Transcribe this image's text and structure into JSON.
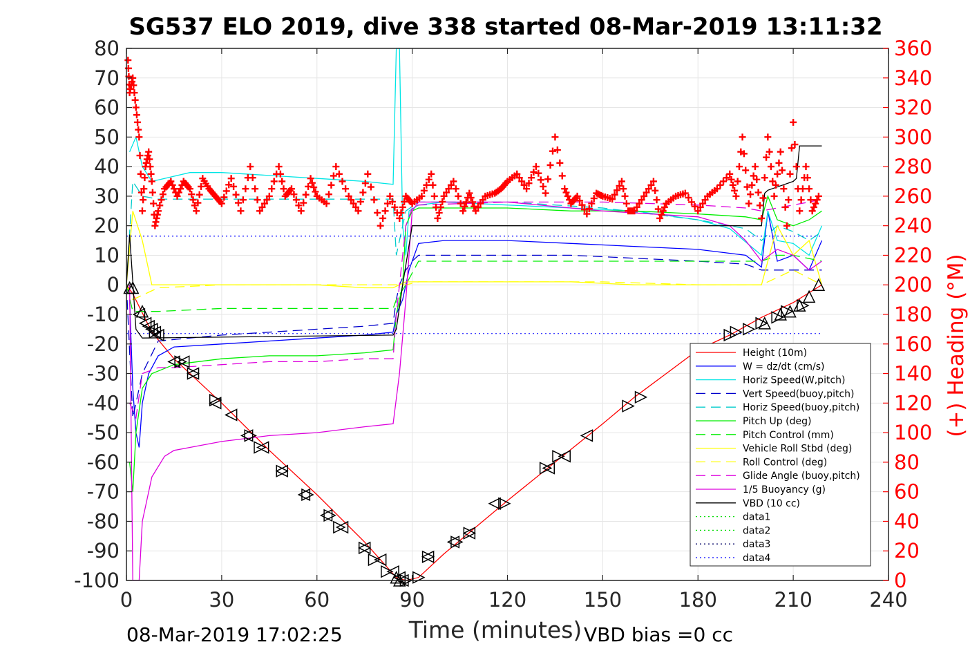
{
  "chart_data": {
    "type": "line",
    "title": "SG537 ELO 2019, dive 338 started 08-Mar-2019 13:11:32",
    "xlabel": "Time (minutes)",
    "ylabel_right": "(+) Heading (°M)",
    "xlim": [
      0,
      240
    ],
    "ylim": [
      -100,
      80
    ],
    "ylim_right": [
      0,
      360
    ],
    "x_ticks": [
      "0",
      "30",
      "60",
      "90",
      "120",
      "150",
      "180",
      "210",
      "240"
    ],
    "y_ticks": [
      "80",
      "70",
      "60",
      "50",
      "40",
      "30",
      "20",
      "10",
      "0",
      "-10",
      "-20",
      "-30",
      "-40",
      "-50",
      "-60",
      "-70",
      "-80",
      "-90",
      "-100"
    ],
    "y_ticks_right": [
      "360",
      "340",
      "320",
      "300",
      "280",
      "260",
      "240",
      "220",
      "200",
      "180",
      "160",
      "140",
      "120",
      "100",
      "80",
      "60",
      "40",
      "20",
      "0"
    ],
    "grid": true,
    "legend_position": "lower-right",
    "footer_left": "08-Mar-2019 17:02:25",
    "footer_right": "VBD bias =0 cc",
    "series": [
      {
        "name": "Height (10m)",
        "color": "#ff0000",
        "style": "solid",
        "x": [
          0,
          2,
          8,
          15,
          30,
          45,
          60,
          75,
          85,
          88,
          92,
          100,
          110,
          120,
          135,
          150,
          160,
          170,
          180,
          190,
          200,
          210,
          219
        ],
        "y": [
          0,
          -3,
          -16,
          -25,
          -40,
          -56,
          -71,
          -87,
          -99,
          -100,
          -99,
          -91,
          -82,
          -73,
          -60,
          -47,
          -38,
          -30,
          -22,
          -17,
          -11,
          -6,
          0
        ]
      },
      {
        "name": "W = dz/dt (cm/s)",
        "color": "#0000ff",
        "style": "solid",
        "x": [
          1,
          2,
          3,
          4,
          5,
          7,
          10,
          15,
          30,
          45,
          60,
          75,
          84,
          85,
          87,
          89,
          92,
          100,
          120,
          140,
          160,
          180,
          195,
          200,
          202,
          205,
          210,
          215,
          219
        ],
        "y": [
          -5,
          -35,
          -50,
          -55,
          -40,
          -30,
          -24,
          -21,
          -20,
          -19,
          -18,
          -17,
          -16,
          -10,
          -5,
          5,
          14,
          15,
          15,
          14,
          13,
          12,
          10,
          6,
          25,
          8,
          10,
          5,
          15
        ]
      },
      {
        "name": "Horiz Speed(W,pitch)",
        "color": "#00e5e5",
        "style": "solid",
        "x": [
          1,
          3,
          5,
          8,
          12,
          20,
          30,
          45,
          60,
          75,
          84,
          85,
          86,
          87,
          88,
          89,
          92,
          100,
          120,
          140,
          160,
          180,
          190,
          200,
          202,
          205,
          210,
          215,
          219
        ],
        "y": [
          45,
          50,
          40,
          35,
          36,
          38,
          38,
          37,
          36,
          35,
          34,
          80,
          80,
          20,
          10,
          25,
          27,
          28,
          27,
          26,
          25,
          22,
          19,
          10,
          25,
          15,
          14,
          10,
          20
        ]
      },
      {
        "name": "Vert Speed(buoy,pitch)",
        "color": "#0000cc",
        "style": "dashed",
        "x": [
          0,
          2,
          5,
          10,
          20,
          30,
          45,
          60,
          75,
          84,
          85,
          86,
          88,
          90,
          92,
          100,
          120,
          140,
          160,
          180,
          195,
          200,
          205,
          210,
          215,
          219
        ],
        "y": [
          0,
          -45,
          -30,
          -19,
          -18,
          -17,
          -16,
          -15,
          -14,
          -13,
          -5,
          0,
          5,
          8,
          10,
          10,
          10,
          10,
          9,
          8,
          7,
          5,
          5,
          5,
          5,
          5
        ]
      },
      {
        "name": "Horiz Speed(buoy,pitch)",
        "color": "#00cccc",
        "style": "dashed",
        "x": [
          0,
          2,
          5,
          10,
          30,
          60,
          84,
          85,
          88,
          92,
          120,
          150,
          180,
          195,
          200,
          205,
          210,
          215,
          219
        ],
        "y": [
          0,
          35,
          30,
          29,
          29,
          29,
          29,
          10,
          25,
          28,
          28,
          26,
          22,
          19,
          15,
          20,
          18,
          15,
          18
        ]
      },
      {
        "name": "Pitch Up (deg)",
        "color": "#00ee00",
        "style": "solid",
        "x": [
          1,
          2,
          3,
          5,
          8,
          15,
          30,
          45,
          60,
          75,
          84,
          85,
          86,
          87,
          88,
          90,
          92,
          100,
          120,
          140,
          160,
          180,
          195,
          200,
          202,
          205,
          210,
          215,
          219
        ],
        "y": [
          -60,
          -70,
          -50,
          -35,
          -30,
          -27,
          -25,
          -24,
          -24,
          -23,
          -22,
          -10,
          -5,
          0,
          20,
          25,
          26,
          26,
          26,
          25,
          25,
          24,
          23,
          22,
          30,
          22,
          20,
          22,
          25
        ]
      },
      {
        "name": "Pitch Control (mm)",
        "color": "#00ee00",
        "style": "dashed",
        "x": [
          0,
          2,
          10,
          30,
          60,
          84,
          85,
          88,
          92,
          120,
          150,
          180,
          195,
          200,
          205,
          210,
          219
        ],
        "y": [
          0,
          -9,
          -9,
          -8,
          -8,
          -8,
          -5,
          0,
          8,
          8,
          8,
          8,
          8,
          8,
          10,
          10,
          8
        ]
      },
      {
        "name": "Vehicle Roll Stbd (deg)",
        "color": "#ffff00",
        "style": "solid",
        "x": [
          0,
          2,
          5,
          8,
          15,
          30,
          45,
          60,
          75,
          84,
          86,
          88,
          90,
          100,
          120,
          140,
          160,
          180,
          195,
          200,
          205,
          210,
          215,
          219
        ],
        "y": [
          0,
          25,
          15,
          0,
          0,
          0,
          0,
          0,
          -1,
          -1,
          0,
          1,
          1,
          1,
          1,
          1,
          0,
          0,
          0,
          0,
          20,
          10,
          15,
          0
        ]
      },
      {
        "name": "Roll Control (deg)",
        "color": "#ffff00",
        "style": "dashed",
        "x": [
          0,
          2,
          10,
          30,
          60,
          84,
          88,
          92,
          120,
          150,
          180,
          200,
          210,
          219
        ],
        "y": [
          0,
          -5,
          -1,
          0,
          0,
          0,
          0,
          1,
          1,
          1,
          0,
          0,
          5,
          0
        ]
      },
      {
        "name": "Glide Angle (buoy,pitch)",
        "color": "#dd00dd",
        "style": "dashed",
        "x": [
          1,
          3,
          5,
          10,
          15,
          30,
          45,
          60,
          75,
          84,
          85,
          86,
          88,
          90,
          92,
          120,
          150,
          180,
          195,
          200,
          205,
          210,
          215,
          219
        ],
        "y": [
          -40,
          -45,
          -30,
          -28,
          -28,
          -27,
          -26,
          -26,
          -25,
          -25,
          -10,
          0,
          20,
          26,
          27,
          28,
          28,
          27,
          26,
          25,
          26,
          27,
          28,
          29
        ]
      },
      {
        "name": "1/5 Buoyancy (g)",
        "color": "#dd00dd",
        "style": "solid",
        "x": [
          1,
          2,
          4,
          5,
          8,
          12,
          15,
          20,
          30,
          45,
          60,
          75,
          84,
          86,
          88,
          90,
          92,
          120,
          150,
          180,
          190,
          195,
          200,
          205,
          210,
          215,
          219
        ],
        "y": [
          0,
          -100,
          -100,
          -80,
          -65,
          -58,
          -56,
          -55,
          -53,
          -51,
          -50,
          -48,
          -47,
          -30,
          -5,
          25,
          28,
          28,
          25,
          23,
          20,
          15,
          8,
          12,
          10,
          5,
          8
        ]
      },
      {
        "name": "VBD (10 cc)",
        "color": "#000000",
        "style": "solid",
        "x": [
          0,
          1,
          3,
          5,
          84,
          85,
          87,
          90,
          200,
          201,
          202,
          210,
          211,
          212,
          219
        ],
        "y": [
          0,
          17,
          -15,
          -18,
          -17,
          -15,
          0,
          20,
          20,
          31,
          32,
          35,
          36,
          47,
          47
        ]
      },
      {
        "name": "data1",
        "color": "#00dd00",
        "style": "dotted",
        "x": [],
        "y": []
      },
      {
        "name": "data2",
        "color": "#00dd00",
        "style": "dotted",
        "x": [],
        "y": []
      },
      {
        "name": "data3",
        "color": "#000066",
        "style": "dotted",
        "x": [],
        "y": []
      },
      {
        "name": "data4",
        "color": "#0000ff",
        "style": "dotted",
        "x": [
          0,
          219
        ],
        "y": [
          16.5,
          16.5
        ]
      }
    ],
    "reference_lines": [
      {
        "color": "#0000ff",
        "style": "dotted",
        "y": 16.5,
        "x": [
          0,
          219
        ]
      },
      {
        "color": "#0000ff",
        "style": "dotted",
        "y": -16.5,
        "x": [
          0,
          219
        ]
      }
    ],
    "heading_series": {
      "name": "Heading",
      "axis": "right",
      "color": "#ff0000",
      "marker": "+",
      "x": [
        0.5,
        1,
        2,
        3,
        4,
        5,
        6,
        7,
        8,
        9,
        10,
        12,
        14,
        16,
        18,
        20,
        22,
        24,
        26,
        28,
        30,
        33,
        36,
        39,
        42,
        45,
        48,
        50,
        52,
        55,
        58,
        60,
        63,
        66,
        70,
        73,
        76,
        80,
        83,
        86,
        88,
        90,
        93,
        96,
        98,
        100,
        103,
        106,
        108,
        110,
        113,
        116,
        118,
        120,
        123,
        126,
        129,
        132,
        135,
        138,
        140,
        142,
        145,
        148,
        150,
        153,
        156,
        158,
        160,
        163,
        166,
        168,
        170,
        173,
        176,
        180,
        183,
        186,
        190,
        192,
        194,
        196,
        198,
        200,
        202,
        204,
        206,
        208,
        210,
        212,
        214,
        216,
        218
      ],
      "y": [
        352,
        330,
        340,
        320,
        300,
        250,
        280,
        290,
        270,
        240,
        250,
        265,
        270,
        260,
        270,
        265,
        250,
        272,
        265,
        260,
        255,
        272,
        250,
        280,
        250,
        260,
        280,
        260,
        265,
        250,
        272,
        260,
        255,
        280,
        260,
        250,
        275,
        240,
        260,
        245,
        260,
        255,
        260,
        275,
        245,
        260,
        270,
        250,
        262,
        250,
        260,
        262,
        265,
        270,
        275,
        265,
        280,
        262,
        300,
        265,
        255,
        260,
        248,
        262,
        260,
        258,
        270,
        250,
        250,
        260,
        270,
        245,
        255,
        260,
        262,
        250,
        260,
        265,
        275,
        260,
        300,
        255,
        280,
        245,
        300,
        260,
        290,
        240,
        310,
        250,
        280,
        250,
        260
      ]
    },
    "markers": [
      {
        "name": "left-triangles",
        "symbol": "triangle-left",
        "x": [
          4,
          6,
          7,
          8,
          9,
          10,
          15,
          18,
          21,
          28,
          33,
          38,
          43,
          49,
          56,
          63,
          68,
          75,
          80,
          84,
          86,
          87,
          95,
          103,
          108,
          116,
          133,
          138,
          145
        ],
        "y": [
          -10,
          -13,
          -14,
          -15,
          -16,
          -17,
          -26,
          -26,
          -30,
          -40,
          -44,
          -51,
          -55,
          -63,
          -71,
          -78,
          -82,
          -89,
          -93,
          -97,
          -99,
          -100,
          -92,
          -87,
          -84,
          -74,
          -62,
          -58,
          -51
        ]
      },
      {
        "name": "right-triangles",
        "symbol": "triangle-right",
        "x": [
          9,
          17,
          21,
          28,
          39,
          42,
          49,
          57,
          64,
          67,
          75,
          78,
          82,
          88,
          92,
          95,
          104,
          108,
          119,
          132,
          136,
          158,
          162,
          190,
          192,
          196,
          200,
          205,
          208,
          213
        ],
        "y": [
          -16,
          -26,
          -30,
          -39,
          -51,
          -55,
          -63,
          -71,
          -78,
          -82,
          -89,
          -93,
          -97,
          -100,
          -99,
          -92,
          -87,
          -84,
          -74,
          -62,
          -58,
          -41,
          -38,
          -17,
          -16,
          -15,
          -13,
          -11,
          -9,
          -7
        ]
      },
      {
        "name": "up-triangles",
        "symbol": "triangle-up",
        "x": [
          1,
          2,
          5,
          85,
          86,
          201,
          206,
          209,
          212,
          215,
          218
        ],
        "y": [
          -1,
          -1,
          -9,
          -99,
          -100,
          -13,
          -10,
          -9,
          -7,
          -4,
          0
        ]
      }
    ]
  }
}
